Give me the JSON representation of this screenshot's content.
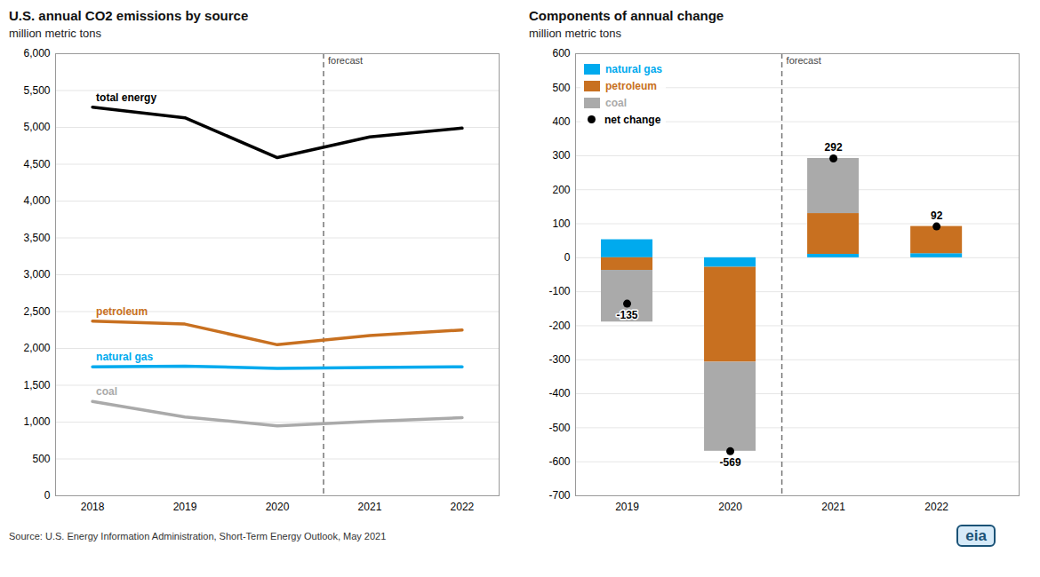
{
  "chart_data": [
    {
      "type": "line",
      "title": "U.S. annual CO2 emissions by source",
      "subtitle": "million metric tons",
      "x": [
        2018,
        2019,
        2020,
        2021,
        2022
      ],
      "series": [
        {
          "name": "total energy",
          "color": "#000000",
          "values": [
            5275,
            5130,
            4590,
            4870,
            4990
          ]
        },
        {
          "name": "petroleum",
          "color": "#c87020",
          "values": [
            2370,
            2330,
            2050,
            2175,
            2250
          ]
        },
        {
          "name": "natural gas",
          "color": "#00aaee",
          "values": [
            1750,
            1760,
            1730,
            1740,
            1750
          ]
        },
        {
          "name": "coal",
          "color": "#aaaaaa",
          "values": [
            1280,
            1070,
            950,
            1010,
            1060
          ]
        }
      ],
      "xlim": [
        2017.6,
        2022.4
      ],
      "xticks": [
        2018,
        2019,
        2020,
        2021,
        2022
      ],
      "ylim": [
        0,
        6000
      ],
      "yticks": [
        0,
        500,
        {
          "value": 1000,
          "label": "1,000"
        },
        {
          "value": 1500,
          "label": "1,500"
        },
        {
          "value": 2000,
          "label": "2,000"
        },
        {
          "value": 2500,
          "label": "2,500"
        },
        {
          "value": 3000,
          "label": "3,000"
        },
        {
          "value": 3500,
          "label": "3,500"
        },
        {
          "value": 4000,
          "label": "4,000"
        },
        {
          "value": 4500,
          "label": "4,500"
        },
        {
          "value": 5000,
          "label": "5,000"
        },
        {
          "value": 5500,
          "label": "5,500"
        },
        {
          "value": 6000,
          "label": "6,000"
        }
      ],
      "grid": true,
      "annotations": [
        {
          "text": "forecast",
          "x": 2020.5
        }
      ],
      "caption": "Source: U.S. Energy Information Administration, Short-Term Energy Outlook, May 2021"
    },
    {
      "type": "bar",
      "title": "Components of annual change",
      "subtitle": "million metric tons",
      "x": [
        2019,
        2020,
        2021,
        2022
      ],
      "series": [
        {
          "name": "natural gas",
          "color": "#00aaee",
          "values": [
            53,
            -28,
            10,
            12
          ]
        },
        {
          "name": "petroleum",
          "color": "#c87020",
          "values": [
            -37,
            -279,
            120,
            80
          ]
        },
        {
          "name": "coal",
          "color": "#aaaaaa",
          "values": [
            -152,
            -262,
            162,
            0
          ]
        },
        {
          "name": "net change",
          "type": "scatter",
          "color": "#000000",
          "values": [
            -135,
            -569,
            292,
            92
          ],
          "data_labels": true
        }
      ],
      "stacked": true,
      "xlim": [
        2018.5,
        2022.8
      ],
      "xticks": [
        2019,
        2020,
        2021,
        2022
      ],
      "ylim": [
        -700,
        600
      ],
      "yticks": [
        -700,
        -600,
        -500,
        -400,
        -300,
        -200,
        -100,
        0,
        100,
        200,
        300,
        400,
        500,
        600
      ],
      "grid": true,
      "legend": "upper left",
      "annotations": [
        {
          "text": "forecast",
          "x": 2020.5
        },
        {
          "text": "eia"
        }
      ]
    }
  ]
}
